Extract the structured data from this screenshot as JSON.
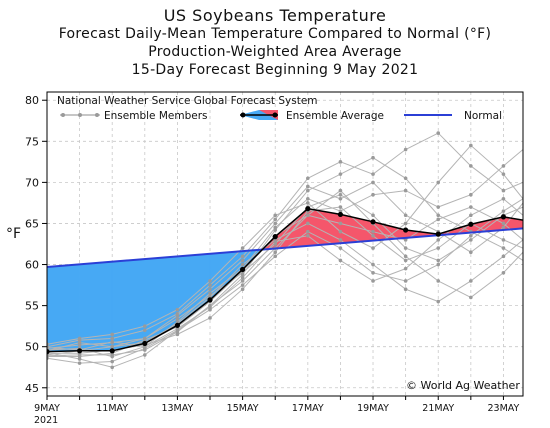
{
  "chart_data": {
    "type": "line",
    "title": "US Soybeans Temperature",
    "subtitle_lines": [
      "Forecast Daily-Mean Temperature Compared to Normal (°F)",
      "Production-Weighted Area Average",
      "15-Day Forecast Beginning 9 May 2021"
    ],
    "model_label": "National Weather Service Global Forecast System",
    "ylabel": "°F",
    "ylim": [
      44,
      81
    ],
    "yticks": [
      45,
      50,
      55,
      60,
      65,
      70,
      75,
      80
    ],
    "xlim": [
      0,
      14.6
    ],
    "xtick_labels": [
      "9MAY",
      "11MAY",
      "13MAY",
      "15MAY",
      "17MAY",
      "19MAY",
      "21MAY",
      "23MAY"
    ],
    "xtick_positions": [
      0,
      2,
      4,
      6,
      8,
      10,
      12,
      14
    ],
    "x_year_label": "2021",
    "grid": true,
    "legend_placement": "top",
    "legend": {
      "members_label": "Ensemble Members",
      "average_label": "Ensemble Average",
      "normal_label": "Normal"
    },
    "normal": {
      "x": [
        0,
        14.6
      ],
      "y": [
        59.7,
        64.4
      ]
    },
    "ensemble_average": {
      "x": [
        0,
        1,
        2,
        3,
        4,
        5,
        6,
        7,
        8,
        9,
        10,
        11,
        12,
        13,
        14,
        14.6
      ],
      "y": [
        49.4,
        49.5,
        49.5,
        50.4,
        52.6,
        55.7,
        59.4,
        63.4,
        66.8,
        66.1,
        65.2,
        64.2,
        63.7,
        64.9,
        65.8,
        65.4
      ]
    },
    "ensemble_members": [
      {
        "x": [
          0,
          1,
          2,
          3,
          4,
          5,
          6,
          7,
          8,
          9,
          10,
          11,
          12,
          13,
          14,
          14.6
        ],
        "y": [
          49.8,
          50.2,
          50.5,
          51.0,
          53.4,
          56.2,
          59.0,
          62.5,
          67.0,
          68.5,
          66.0,
          62.0,
          60.5,
          63.0,
          66.0,
          67.0
        ]
      },
      {
        "x": [
          0,
          1,
          2,
          3,
          4,
          5,
          6,
          7,
          8,
          9,
          10,
          11,
          12,
          13,
          14,
          14.6
        ],
        "y": [
          48.9,
          49.0,
          49.0,
          49.6,
          51.8,
          55.0,
          58.8,
          64.2,
          69.0,
          71.0,
          73.0,
          70.5,
          66.0,
          64.0,
          62.0,
          60.5
        ]
      },
      {
        "x": [
          0,
          1,
          2,
          3,
          4,
          5,
          6,
          7,
          8,
          9,
          10,
          11,
          12,
          13,
          14,
          14.6
        ],
        "y": [
          49.3,
          48.5,
          47.5,
          49.0,
          52.0,
          54.5,
          57.5,
          61.0,
          64.0,
          62.0,
          59.0,
          58.0,
          60.0,
          63.5,
          66.5,
          68.0
        ]
      },
      {
        "x": [
          0,
          1,
          2,
          3,
          4,
          5,
          6,
          7,
          8,
          9,
          10,
          11,
          12,
          13,
          14,
          14.6
        ],
        "y": [
          50.0,
          50.8,
          51.0,
          52.0,
          54.0,
          57.5,
          61.0,
          65.5,
          70.5,
          72.5,
          71.0,
          74.0,
          76.0,
          72.0,
          69.0,
          70.0
        ]
      },
      {
        "x": [
          0,
          1,
          2,
          3,
          4,
          5,
          6,
          7,
          8,
          9,
          10,
          11,
          12,
          13,
          14,
          14.6
        ],
        "y": [
          49.0,
          49.5,
          50.0,
          50.5,
          52.8,
          56.0,
          60.0,
          63.0,
          65.0,
          63.0,
          60.0,
          57.0,
          55.5,
          58.0,
          61.0,
          63.0
        ]
      },
      {
        "x": [
          0,
          1,
          2,
          3,
          4,
          5,
          6,
          7,
          8,
          9,
          10,
          11,
          12,
          13,
          14,
          14.6
        ],
        "y": [
          49.6,
          49.8,
          48.8,
          50.0,
          53.0,
          56.5,
          59.5,
          64.5,
          68.0,
          66.5,
          68.5,
          69.0,
          67.0,
          68.5,
          72.0,
          74.0
        ]
      },
      {
        "x": [
          0,
          1,
          2,
          3,
          4,
          5,
          6,
          7,
          8,
          9,
          10,
          11,
          12,
          13,
          14,
          14.6
        ],
        "y": [
          48.6,
          48.0,
          48.2,
          49.8,
          52.0,
          55.0,
          58.0,
          62.0,
          66.0,
          69.0,
          65.0,
          61.0,
          58.0,
          56.0,
          59.0,
          61.5
        ]
      },
      {
        "x": [
          0,
          1,
          2,
          3,
          4,
          5,
          6,
          7,
          8,
          9,
          10,
          11,
          12,
          13,
          14,
          14.6
        ],
        "y": [
          50.3,
          51.0,
          51.5,
          52.5,
          54.5,
          58.0,
          62.0,
          66.0,
          67.5,
          64.0,
          62.0,
          65.0,
          70.0,
          74.5,
          71.0,
          68.0
        ]
      },
      {
        "x": [
          0,
          1,
          2,
          3,
          4,
          5,
          6,
          7,
          8,
          9,
          10,
          11,
          12,
          13,
          14,
          14.6
        ],
        "y": [
          49.2,
          49.2,
          49.6,
          50.2,
          51.5,
          53.5,
          57.0,
          61.5,
          66.5,
          67.0,
          63.5,
          60.5,
          62.0,
          65.0,
          63.0,
          62.0
        ]
      },
      {
        "x": [
          0,
          1,
          2,
          3,
          4,
          5,
          6,
          7,
          8,
          9,
          10,
          11,
          12,
          13,
          14,
          14.6
        ],
        "y": [
          49.5,
          50.5,
          50.0,
          51.0,
          53.8,
          57.0,
          60.5,
          65.0,
          69.5,
          68.0,
          70.0,
          66.0,
          64.0,
          61.5,
          64.5,
          67.5
        ]
      },
      {
        "x": [
          0,
          1,
          2,
          3,
          4,
          5,
          6,
          7,
          8,
          9,
          10,
          11,
          12,
          13,
          14,
          14.6
        ],
        "y": [
          48.8,
          48.8,
          49.2,
          50.8,
          52.4,
          55.5,
          59.2,
          63.5,
          66.0,
          65.0,
          64.0,
          63.0,
          65.5,
          67.0,
          65.0,
          63.0
        ]
      },
      {
        "x": [
          0,
          1,
          2,
          3,
          4,
          5,
          6,
          7,
          8,
          9,
          10,
          11,
          12,
          13,
          14,
          14.6
        ],
        "y": [
          49.9,
          49.6,
          50.6,
          50.0,
          52.2,
          54.8,
          58.4,
          62.8,
          63.5,
          60.5,
          58.0,
          59.5,
          63.0,
          66.0,
          68.0,
          66.0
        ]
      }
    ],
    "annotation": "© World Ag Weather"
  },
  "colors": {
    "below_normal_fill": "#47a9f4",
    "above_normal_fill": "#f5566b",
    "normal_line": "#2b3fd6",
    "average_line": "#000000",
    "member_line": "#b4b4b4",
    "member_marker": "#9a9a9a",
    "grid": "#c8c8c8"
  }
}
